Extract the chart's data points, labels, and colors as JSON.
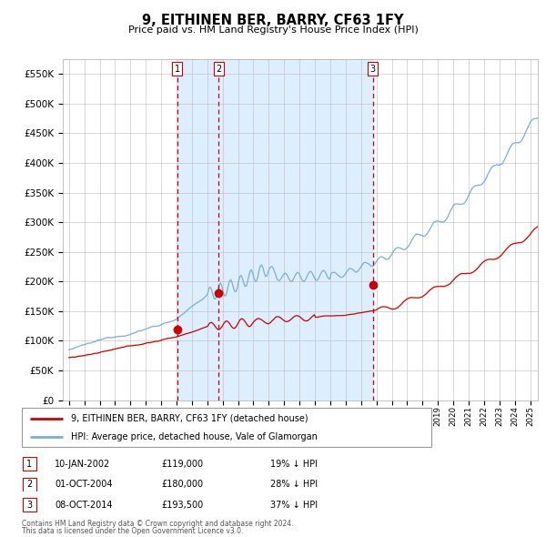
{
  "title": "9, EITHINEN BER, BARRY, CF63 1FY",
  "subtitle": "Price paid vs. HM Land Registry's House Price Index (HPI)",
  "legend_red": "9, EITHINEN BER, BARRY, CF63 1FY (detached house)",
  "legend_blue": "HPI: Average price, detached house, Vale of Glamorgan",
  "transactions": [
    {
      "num": 1,
      "date": "10-JAN-2002",
      "price": 119000,
      "pct": "19%",
      "dir": "↓",
      "x_year": 2002.03
    },
    {
      "num": 2,
      "date": "01-OCT-2004",
      "price": 180000,
      "pct": "28%",
      "dir": "↓",
      "x_year": 2004.75
    },
    {
      "num": 3,
      "date": "08-OCT-2014",
      "price": 193500,
      "pct": "37%",
      "dir": "↓",
      "x_year": 2014.77
    }
  ],
  "footer1": "Contains HM Land Registry data © Crown copyright and database right 2024.",
  "footer2": "This data is licensed under the Open Government Licence v3.0.",
  "ylim": [
    0,
    575000
  ],
  "yticks": [
    0,
    50000,
    100000,
    150000,
    200000,
    250000,
    300000,
    350000,
    400000,
    450000,
    500000,
    550000
  ],
  "xlim_start": 1994.6,
  "xlim_end": 2025.5,
  "red_color": "#cc0000",
  "blue_color": "#7bafd4",
  "shade_color": "#ddeeff",
  "grid_color": "#bbbbbb",
  "background_color": "#ffffff"
}
